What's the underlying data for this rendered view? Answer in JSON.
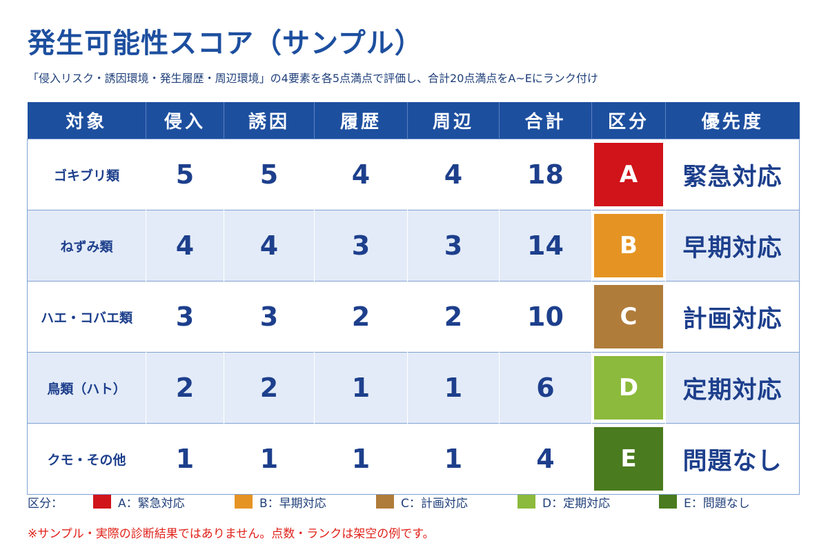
{
  "title": "発生可能性スコア（サンプル）",
  "subtitle": "「侵入リスク・誘因環境・発生履歴・周辺環境」の4要素を各5点満点で評価し、合計20点満点をA~Eにランク付け",
  "table": {
    "headers": [
      "対象",
      "侵入",
      "誘因",
      "履歴",
      "周辺",
      "合計",
      "区分",
      "優先度"
    ],
    "rows": [
      {
        "target": "ゴキブリ類",
        "intrusion": "5",
        "attraction": "5",
        "history": "4",
        "surroundings": "4",
        "total": "18",
        "rank": "A",
        "priority": "緊急対応"
      },
      {
        "target": "ねずみ類",
        "intrusion": "4",
        "attraction": "4",
        "history": "3",
        "surroundings": "3",
        "total": "14",
        "rank": "B",
        "priority": "早期対応"
      },
      {
        "target": "ハエ・コバエ類",
        "intrusion": "3",
        "attraction": "3",
        "history": "2",
        "surroundings": "2",
        "total": "10",
        "rank": "C",
        "priority": "計画対応"
      },
      {
        "target": "鳥類（ハト）",
        "intrusion": "2",
        "attraction": "2",
        "history": "1",
        "surroundings": "1",
        "total": "6",
        "rank": "D",
        "priority": "定期対応"
      },
      {
        "target": "クモ・その他",
        "intrusion": "1",
        "attraction": "1",
        "history": "1",
        "surroundings": "1",
        "total": "4",
        "rank": "E",
        "priority": "問題なし"
      }
    ]
  },
  "rank_colors": {
    "A": "#d0141a",
    "B": "#e59423",
    "C": "#b07c3a",
    "D": "#8cba3c",
    "E": "#4a7b1e"
  },
  "legend": {
    "label": "区分：",
    "items": [
      {
        "text": "A：緊急対応",
        "color": "#d0141a"
      },
      {
        "text": "B：早期対応",
        "color": "#e59423"
      },
      {
        "text": "C：計画対応",
        "color": "#b07c3a"
      },
      {
        "text": "D：定期対応",
        "color": "#8cba3c"
      },
      {
        "text": "E：問題なし",
        "color": "#4a7b1e"
      }
    ]
  },
  "note": "※サンプル・実際の診断結果ではありません。点数・ランクは架空の例です。"
}
